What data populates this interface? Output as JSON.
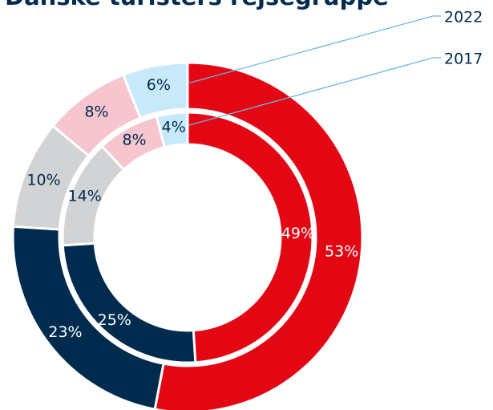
{
  "chart_data": {
    "type": "donut",
    "title": "Danske turisters rejsegruppe",
    "colors": [
      "#e30613",
      "#002b4f",
      "#d2d3d4",
      "#f6c5cd",
      "#c8e9fa"
    ],
    "label_colors": [
      "#ffffff",
      "#ffffff",
      "#002b4f",
      "#002b4f",
      "#002b4f"
    ],
    "series": [
      {
        "name": "2022",
        "values": [
          53,
          23,
          10,
          8,
          6
        ],
        "value_labels": [
          "53%",
          "23%",
          "10%",
          "8%",
          "6%"
        ]
      },
      {
        "name": "2017",
        "values": [
          49,
          25,
          14,
          8,
          4
        ],
        "value_labels": [
          "49%",
          "25%",
          "14%",
          "8%",
          "4%"
        ]
      }
    ]
  }
}
